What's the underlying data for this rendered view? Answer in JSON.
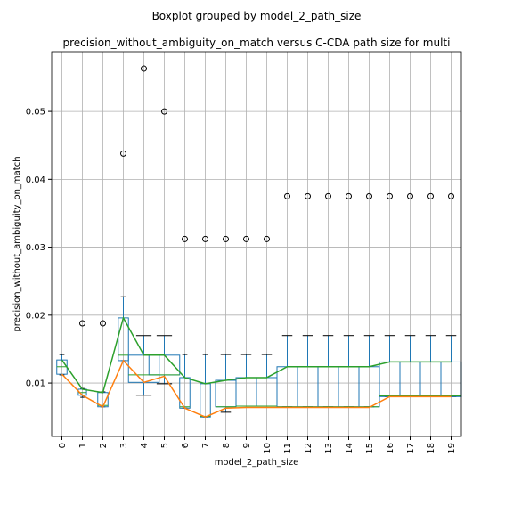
{
  "chart_data": {
    "type": "box",
    "suptitle": "Boxplot grouped by model_2_path_size",
    "title": "precision_without_ambiguity_on_match versus C-CDA path size for multi",
    "x_label": "model_2_path_size",
    "y_label": "precision_without_ambiguity_on_match",
    "categories": [
      "0",
      "1",
      "2",
      "3",
      "4",
      "5",
      "6",
      "7",
      "8",
      "9",
      "10",
      "11",
      "12",
      "13",
      "14",
      "15",
      "16",
      "17",
      "18",
      "19"
    ],
    "widths": [
      0.5,
      0.4,
      0.5,
      0.5,
      1.5,
      1.5,
      0.5,
      0.5,
      1,
      1,
      1,
      1,
      1,
      1,
      1,
      1,
      1,
      1,
      1,
      1
    ],
    "whislo": [
      0.0112,
      0.0079,
      0.0065,
      0.0133,
      0.0082,
      0.0099,
      0.0063,
      0.005,
      0.0057,
      0.0066,
      0.0066,
      0.0065,
      0.0065,
      0.0065,
      0.0065,
      0.0065,
      0.008,
      0.008,
      0.008,
      0.008
    ],
    "q1": [
      0.0113,
      0.0082,
      0.0065,
      0.0133,
      0.0101,
      0.0112,
      0.0063,
      0.005,
      0.0065,
      0.0066,
      0.0066,
      0.0065,
      0.0065,
      0.0065,
      0.0065,
      0.0065,
      0.008,
      0.008,
      0.008,
      0.008
    ],
    "median": [
      0.0124,
      0.0086,
      0.0067,
      0.0141,
      0.0112,
      0.0112,
      0.0065,
      0.0051,
      0.0065,
      0.0066,
      0.0066,
      0.0065,
      0.0065,
      0.0065,
      0.0065,
      0.0065,
      0.0081,
      0.0081,
      0.0081,
      0.0081
    ],
    "q3": [
      0.0134,
      0.0091,
      0.0086,
      0.0196,
      0.0141,
      0.0141,
      0.0108,
      0.0099,
      0.0104,
      0.0108,
      0.0108,
      0.0124,
      0.0124,
      0.0124,
      0.0124,
      0.0124,
      0.0131,
      0.0131,
      0.0131,
      0.0131
    ],
    "whishi": [
      0.0142,
      0.0092,
      0.0087,
      0.0227,
      0.017,
      0.017,
      0.0142,
      0.0142,
      0.0142,
      0.0142,
      0.0142,
      0.017,
      0.017,
      0.017,
      0.017,
      0.017,
      0.017,
      0.017,
      0.017,
      0.017
    ],
    "fliers": [
      [],
      [
        0.0188
      ],
      [
        0.0188
      ],
      [
        0.0438
      ],
      [
        0.0563
      ],
      [
        0.05
      ],
      [
        0.0312
      ],
      [
        0.0312
      ],
      [
        0.0312
      ],
      [
        0.0312
      ],
      [
        0.0312
      ],
      [
        0.0375
      ],
      [
        0.0375
      ],
      [
        0.0375
      ],
      [
        0.0375
      ],
      [
        0.0375
      ],
      [
        0.0375
      ],
      [
        0.0375
      ],
      [
        0.0375
      ],
      [
        0.0375
      ]
    ],
    "box_color": "#1f77b4",
    "median_color": "#2ca02c",
    "cap_color": "#000000",
    "lines": [
      {
        "color": "#ff7f0e",
        "values": [
          0.0113,
          0.0082,
          0.0065,
          0.0133,
          0.0101,
          0.011,
          0.0063,
          0.005,
          0.0063,
          0.0064,
          0.0064,
          0.0064,
          0.0064,
          0.0064,
          0.0064,
          0.0064,
          0.008,
          0.008,
          0.008,
          0.008
        ]
      },
      {
        "color": "#2ca02c",
        "values": [
          0.0134,
          0.0091,
          0.0086,
          0.0196,
          0.0141,
          0.0141,
          0.0108,
          0.0099,
          0.0104,
          0.0108,
          0.0108,
          0.0124,
          0.0124,
          0.0124,
          0.0124,
          0.0124,
          0.0131,
          0.0131,
          0.0131,
          0.0131
        ]
      }
    ],
    "xlim": [
      0.5,
      20.5
    ],
    "ylim": [
      0.00214,
      0.0588
    ],
    "yticks": [
      {
        "value": 0.01,
        "label": "0.01"
      },
      {
        "value": 0.02,
        "label": "0.02"
      },
      {
        "value": 0.03,
        "label": "0.03"
      },
      {
        "value": 0.04,
        "label": "0.04"
      },
      {
        "value": 0.05,
        "label": "0.05"
      }
    ],
    "grid": true
  }
}
